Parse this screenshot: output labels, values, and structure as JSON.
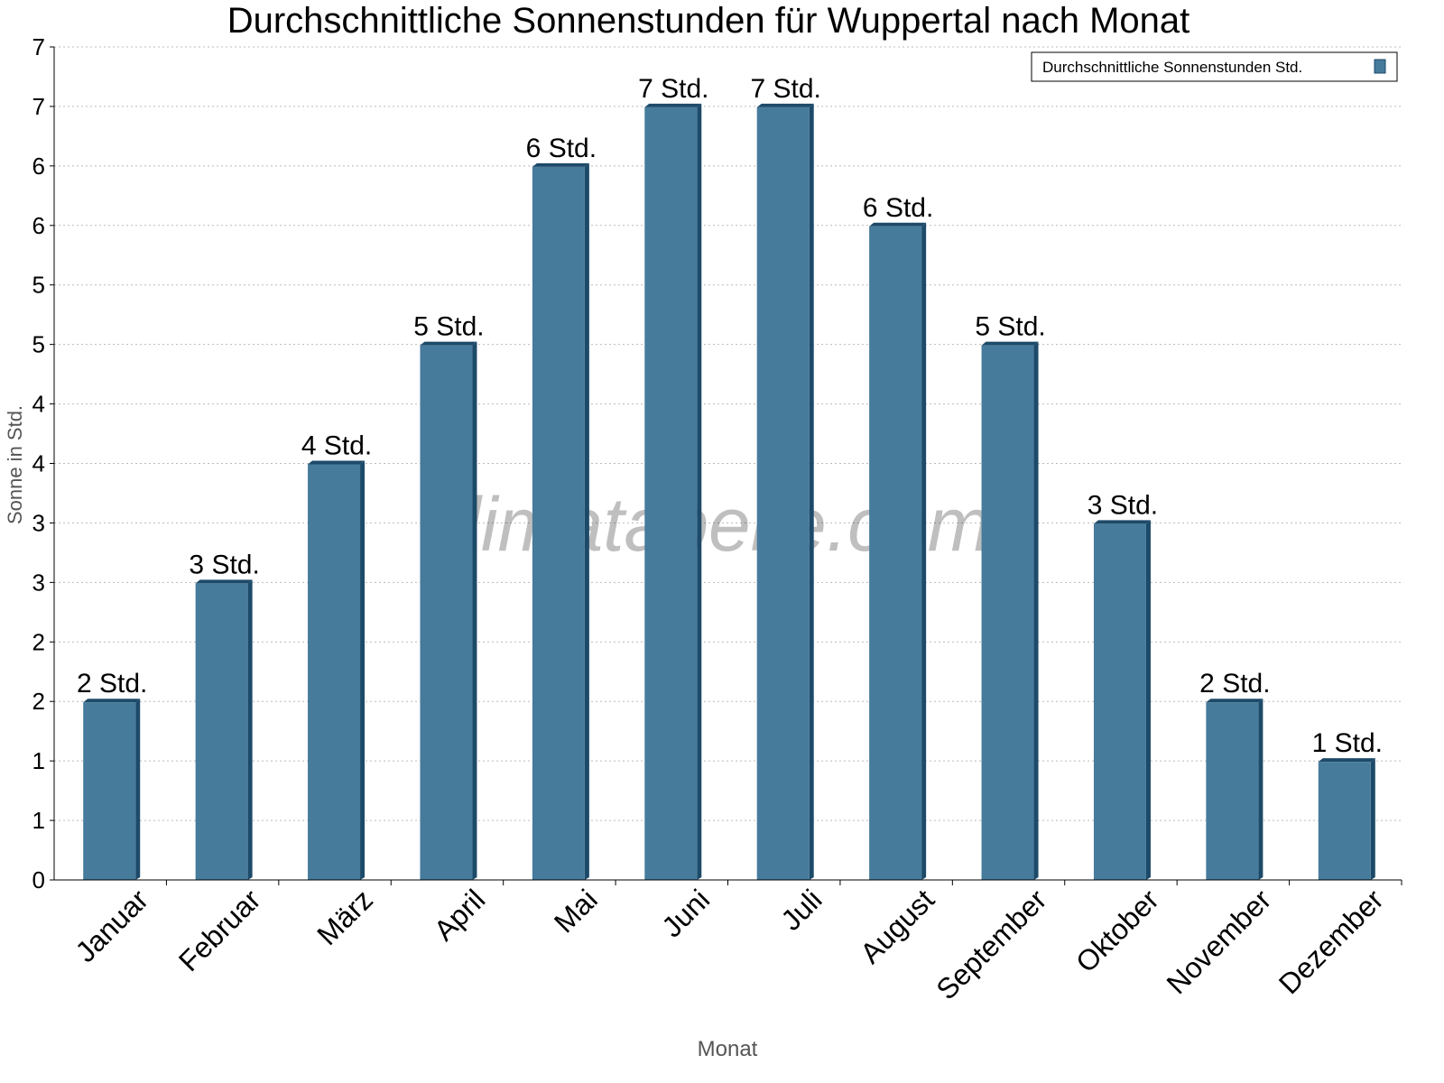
{
  "chart_data": {
    "type": "bar",
    "title": "Durchschnittliche Sonnenstunden für Wuppertal nach Monat",
    "xlabel": "Monat",
    "ylabel": "Sonne in Std.",
    "ylim": [
      0,
      7
    ],
    "yticks": [
      0,
      0.5,
      1,
      1.5,
      2,
      2.5,
      3,
      3.5,
      4,
      4.5,
      5,
      5.5,
      6,
      6.5,
      7
    ],
    "ytick_labels": [
      "0",
      "1",
      "1",
      "2",
      "2",
      "3",
      "3",
      "4",
      "4",
      "5",
      "5",
      "6",
      "6",
      "7",
      "7"
    ],
    "grid": true,
    "legend_position": "top-right",
    "watermark": "klimatabelle.com",
    "categories": [
      "Januar",
      "Februar",
      "März",
      "April",
      "Mai",
      "Juni",
      "Juli",
      "August",
      "September",
      "Oktober",
      "November",
      "Dezember"
    ],
    "series": [
      {
        "name": "Durchschnittliche Sonnenstunden Std.",
        "color": "#467b9c",
        "values": [
          1.5,
          2.5,
          3.5,
          4.5,
          6,
          6.5,
          6.5,
          5.5,
          4.5,
          3,
          1.5,
          1
        ],
        "data_labels": [
          "2 Std.",
          "3 Std.",
          "4 Std.",
          "5 Std.",
          "6 Std.",
          "7 Std.",
          "7 Std.",
          "6 Std.",
          "5 Std.",
          "3 Std.",
          "2 Std.",
          "1 Std."
        ]
      }
    ]
  }
}
